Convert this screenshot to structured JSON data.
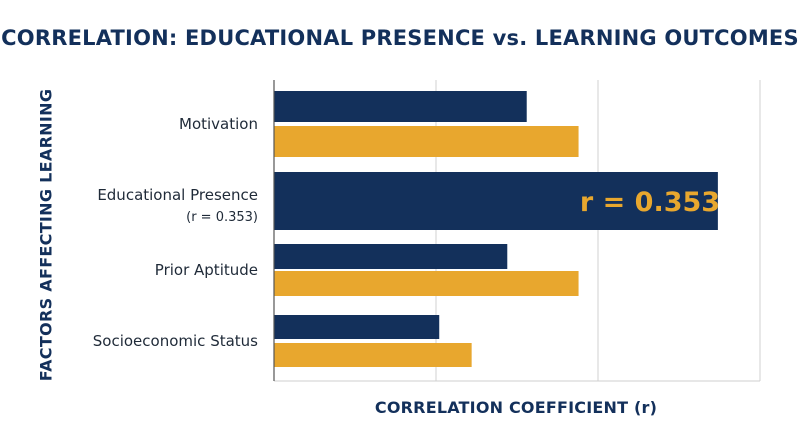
{
  "chart_data": {
    "type": "bar",
    "orientation": "horizontal",
    "title_bold": "CORRELATION:",
    "title_rest": "EDUCATIONAL PRESENCE vs. LEARNING OUTCOMES",
    "xlabel": "CORRELATION COEFFICIENT (r)",
    "ylabel": "FACTORS AFFECTING LEARNING",
    "categories": [
      "Motivation",
      "Educational Presence",
      "Prior Aptitude",
      "Socioeconomic Status"
    ],
    "category_sublabels": [
      "",
      "(r = 0.353)",
      "",
      ""
    ],
    "xlim": [
      0,
      0.3
    ],
    "grid": true,
    "series": [
      {
        "color": "#13305b",
        "values": [
          0.156,
          0.274,
          0.144,
          0.102
        ]
      },
      {
        "color": "#e8a72e",
        "values": [
          0.188,
          null,
          0.188,
          0.122
        ]
      }
    ],
    "annotation": {
      "text": "r = 0.353",
      "category": "Educational Presence",
      "color": "#e8a72e"
    }
  }
}
